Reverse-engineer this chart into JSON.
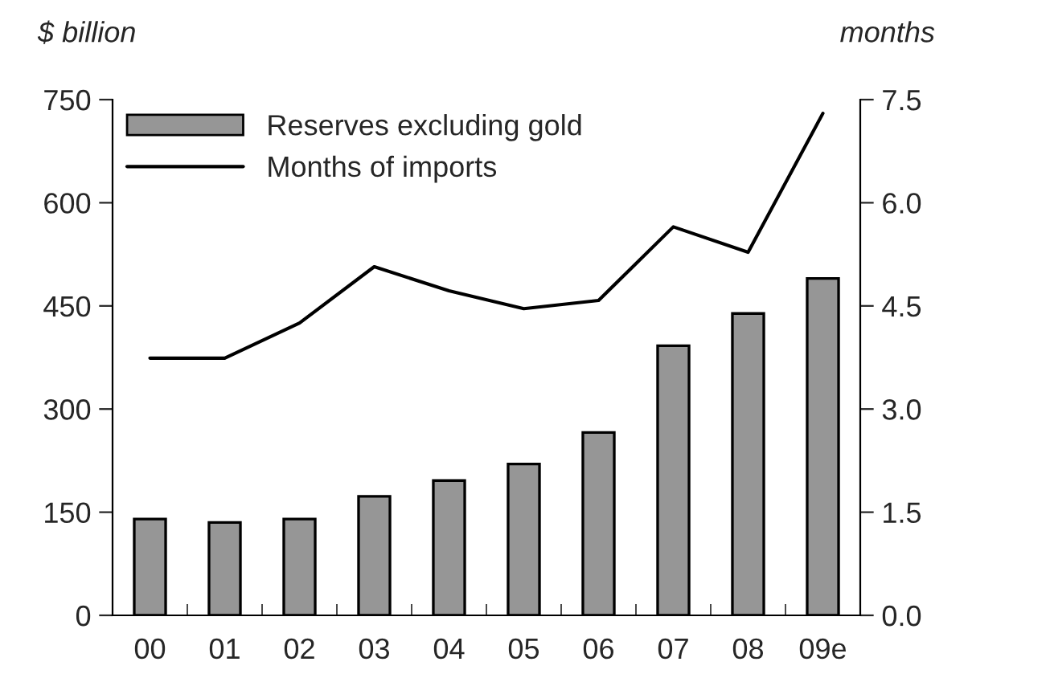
{
  "chart_data": {
    "type": "bar",
    "ylabel": "$ billion",
    "y2label": "months",
    "categories": [
      "00",
      "01",
      "02",
      "03",
      "04",
      "05",
      "06",
      "07",
      "08",
      "09e"
    ],
    "series": [
      {
        "name": "Reserves excluding gold",
        "color": "#969696",
        "values": [
          140,
          135,
          140,
          173,
          196,
          220,
          266,
          392,
          439,
          490
        ]
      },
      {
        "name": "Months of imports",
        "type": "line",
        "axis": "y2",
        "color": "#000000",
        "values": [
          3.74,
          3.74,
          4.25,
          5.07,
          4.72,
          4.46,
          4.58,
          5.65,
          5.28,
          7.3
        ]
      }
    ],
    "ylim": [
      0,
      750
    ],
    "yticks": [
      0,
      150,
      300,
      450,
      600,
      750
    ],
    "y2lim": [
      0,
      7.5
    ],
    "y2ticks": [
      {
        "value": 0,
        "label": "0.0"
      },
      {
        "value": 1.5,
        "label": "1.5"
      },
      {
        "value": 3,
        "label": "3.0"
      },
      {
        "value": 4.5,
        "label": "4.5"
      },
      {
        "value": 6,
        "label": "6.0"
      },
      {
        "value": 7.5,
        "label": "7.5"
      }
    ],
    "legend": "top left",
    "grid": false,
    "marker": "none",
    "line_style": "solid"
  }
}
